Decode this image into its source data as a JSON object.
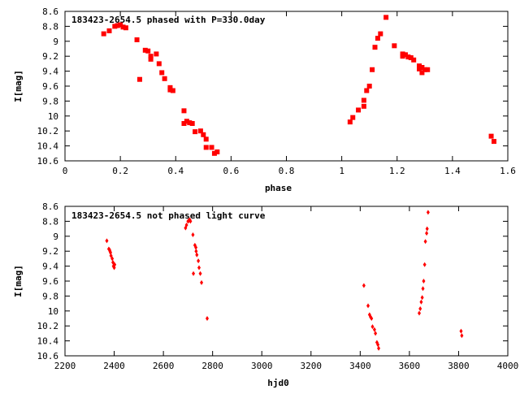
{
  "chart_data": [
    {
      "type": "scatter",
      "title": "183423-2654.5 phased with P=330.0day",
      "xlabel": "phase",
      "ylabel": "I[mag]",
      "xlim": [
        0,
        1.6
      ],
      "ylim": [
        10.6,
        8.6
      ],
      "y_inverted": true,
      "grid": false,
      "marker": "square",
      "color": "#ff0000",
      "xticks": [
        "0",
        "0.2",
        "0.4",
        "0.6",
        "0.8",
        "1",
        "1.2",
        "1.4",
        "1.6"
      ],
      "yticks": [
        "8.6",
        "8.8",
        "9",
        "9.2",
        "9.4",
        "9.6",
        "9.8",
        "10",
        "10.2",
        "10.4",
        "10.6"
      ],
      "points": [
        [
          0.14,
          8.9
        ],
        [
          0.16,
          8.86
        ],
        [
          0.18,
          8.8
        ],
        [
          0.19,
          8.79
        ],
        [
          0.2,
          8.78
        ],
        [
          0.21,
          8.81
        ],
        [
          0.22,
          8.82
        ],
        [
          0.26,
          8.98
        ],
        [
          0.27,
          9.51
        ],
        [
          0.29,
          9.12
        ],
        [
          0.3,
          9.13
        ],
        [
          0.31,
          9.2
        ],
        [
          0.31,
          9.24
        ],
        [
          0.33,
          9.17
        ],
        [
          0.34,
          9.3
        ],
        [
          0.35,
          9.42
        ],
        [
          0.36,
          9.5
        ],
        [
          0.38,
          9.62
        ],
        [
          0.38,
          9.65
        ],
        [
          0.39,
          9.66
        ],
        [
          0.43,
          9.93
        ],
        [
          0.43,
          10.1
        ],
        [
          0.44,
          10.07
        ],
        [
          0.45,
          10.09
        ],
        [
          0.46,
          10.1
        ],
        [
          0.47,
          10.21
        ],
        [
          0.49,
          10.2
        ],
        [
          0.5,
          10.25
        ],
        [
          0.51,
          10.31
        ],
        [
          0.51,
          10.42
        ],
        [
          0.53,
          10.42
        ],
        [
          0.54,
          10.5
        ],
        [
          0.55,
          10.48
        ],
        [
          1.03,
          10.08
        ],
        [
          1.04,
          10.02
        ],
        [
          1.06,
          9.92
        ],
        [
          1.08,
          9.87
        ],
        [
          1.08,
          9.79
        ],
        [
          1.09,
          9.66
        ],
        [
          1.1,
          9.6
        ],
        [
          1.11,
          9.38
        ],
        [
          1.12,
          9.08
        ],
        [
          1.13,
          8.96
        ],
        [
          1.14,
          8.9
        ],
        [
          1.16,
          8.68
        ],
        [
          1.19,
          9.06
        ],
        [
          1.22,
          9.17
        ],
        [
          1.22,
          9.2
        ],
        [
          1.23,
          9.18
        ],
        [
          1.24,
          9.21
        ],
        [
          1.25,
          9.22
        ],
        [
          1.26,
          9.25
        ],
        [
          1.28,
          9.33
        ],
        [
          1.28,
          9.37
        ],
        [
          1.29,
          9.35
        ],
        [
          1.29,
          9.42
        ],
        [
          1.3,
          9.38
        ],
        [
          1.31,
          9.38
        ],
        [
          1.54,
          10.27
        ],
        [
          1.55,
          10.34
        ]
      ]
    },
    {
      "type": "scatter",
      "title": "183423-2654.5 not phased light curve",
      "xlabel": "hjd0",
      "ylabel": "I[mag]",
      "xlim": [
        2200,
        4000
      ],
      "ylim": [
        10.6,
        8.6
      ],
      "y_inverted": true,
      "grid": false,
      "marker": "diamond",
      "color": "#ff0000",
      "xticks": [
        "2200",
        "2400",
        "2600",
        "2800",
        "3000",
        "3200",
        "3400",
        "3600",
        "3800",
        "4000"
      ],
      "yticks": [
        "8.6",
        "8.8",
        "9",
        "9.2",
        "9.4",
        "9.6",
        "9.8",
        "10",
        "10.2",
        "10.4",
        "10.6"
      ],
      "points": [
        [
          2370,
          9.06
        ],
        [
          2378,
          9.17
        ],
        [
          2381,
          9.18
        ],
        [
          2383,
          9.2
        ],
        [
          2385,
          9.22
        ],
        [
          2387,
          9.26
        ],
        [
          2392,
          9.3
        ],
        [
          2395,
          9.35
        ],
        [
          2397,
          9.4
        ],
        [
          2400,
          9.42
        ],
        [
          2402,
          9.38
        ],
        [
          2690,
          8.89
        ],
        [
          2694,
          8.85
        ],
        [
          2700,
          8.8
        ],
        [
          2703,
          8.79
        ],
        [
          2707,
          8.78
        ],
        [
          2710,
          8.8
        ],
        [
          2720,
          8.98
        ],
        [
          2722,
          9.5
        ],
        [
          2728,
          9.12
        ],
        [
          2732,
          9.15
        ],
        [
          2733,
          9.2
        ],
        [
          2736,
          9.25
        ],
        [
          2742,
          9.33
        ],
        [
          2745,
          9.42
        ],
        [
          2750,
          9.5
        ],
        [
          2755,
          9.62
        ],
        [
          2778,
          10.1
        ],
        [
          3415,
          9.66
        ],
        [
          3432,
          9.93
        ],
        [
          3438,
          10.05
        ],
        [
          3442,
          10.08
        ],
        [
          3446,
          10.1
        ],
        [
          3450,
          10.21
        ],
        [
          3458,
          10.25
        ],
        [
          3462,
          10.3
        ],
        [
          3468,
          10.42
        ],
        [
          3472,
          10.45
        ],
        [
          3475,
          10.5
        ],
        [
          3640,
          10.03
        ],
        [
          3644,
          9.97
        ],
        [
          3648,
          9.88
        ],
        [
          3652,
          9.82
        ],
        [
          3655,
          9.7
        ],
        [
          3658,
          9.6
        ],
        [
          3662,
          9.38
        ],
        [
          3665,
          9.07
        ],
        [
          3670,
          8.96
        ],
        [
          3672,
          8.9
        ],
        [
          3676,
          8.68
        ],
        [
          3810,
          10.27
        ],
        [
          3813,
          10.33
        ]
      ]
    }
  ]
}
